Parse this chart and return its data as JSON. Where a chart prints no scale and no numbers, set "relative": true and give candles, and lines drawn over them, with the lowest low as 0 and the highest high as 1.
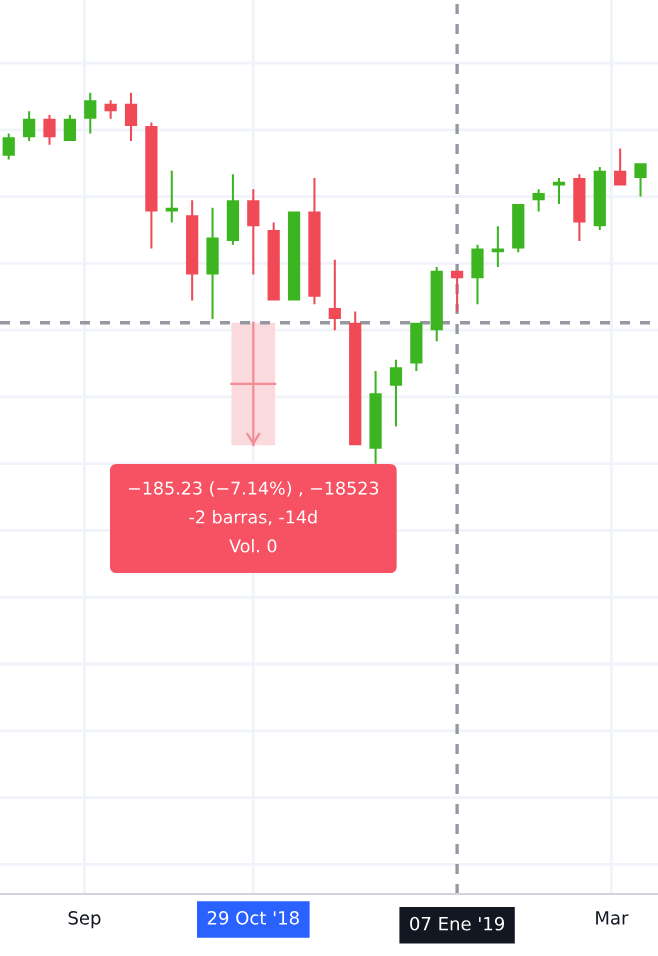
{
  "chart_data": {
    "type": "candlestick",
    "relative": true,
    "x": [
      "2018-08-06",
      "2018-08-13",
      "2018-08-20",
      "2018-08-27",
      "2018-09-03",
      "2018-09-10",
      "2018-09-17",
      "2018-09-24",
      "2018-10-01",
      "2018-10-08",
      "2018-10-15",
      "2018-10-22",
      "2018-10-29",
      "2018-11-05",
      "2018-11-12",
      "2018-11-19",
      "2018-11-26",
      "2018-12-03",
      "2018-12-10",
      "2018-12-17",
      "2018-12-24",
      "2018-12-31",
      "2019-01-07",
      "2019-01-14",
      "2019-01-21",
      "2019-01-28",
      "2019-02-04",
      "2019-02-11",
      "2019-02-18",
      "2019-02-25",
      "2019-03-04",
      "2019-03-11"
    ],
    "ohlc": [
      [
        0.83,
        0.89,
        0.82,
        0.88
      ],
      [
        0.88,
        0.95,
        0.87,
        0.93
      ],
      [
        0.93,
        0.94,
        0.86,
        0.88
      ],
      [
        0.87,
        0.94,
        0.87,
        0.93
      ],
      [
        0.93,
        1.0,
        0.89,
        0.98
      ],
      [
        0.97,
        0.98,
        0.93,
        0.95
      ],
      [
        0.97,
        1.0,
        0.87,
        0.91
      ],
      [
        0.91,
        0.92,
        0.58,
        0.68
      ],
      [
        0.68,
        0.79,
        0.65,
        0.69
      ],
      [
        0.67,
        0.71,
        0.44,
        0.51
      ],
      [
        0.51,
        0.69,
        0.39,
        0.61
      ],
      [
        0.6,
        0.78,
        0.59,
        0.71
      ],
      [
        0.71,
        0.74,
        0.51,
        0.64
      ],
      [
        0.63,
        0.65,
        0.44,
        0.44
      ],
      [
        0.44,
        0.68,
        0.44,
        0.68
      ],
      [
        0.68,
        0.77,
        0.43,
        0.45
      ],
      [
        0.42,
        0.55,
        0.36,
        0.39
      ],
      [
        0.38,
        0.41,
        0.05,
        0.05
      ],
      [
        0.04,
        0.25,
        0.0,
        0.19
      ],
      [
        0.21,
        0.28,
        0.1,
        0.26
      ],
      [
        0.27,
        0.38,
        0.25,
        0.38
      ],
      [
        0.36,
        0.53,
        0.33,
        0.52
      ],
      [
        0.52,
        0.52,
        0.41,
        0.5
      ],
      [
        0.5,
        0.59,
        0.43,
        0.58
      ],
      [
        0.57,
        0.64,
        0.53,
        0.58
      ],
      [
        0.58,
        0.7,
        0.57,
        0.7
      ],
      [
        0.71,
        0.74,
        0.68,
        0.73
      ],
      [
        0.75,
        0.77,
        0.7,
        0.76
      ],
      [
        0.77,
        0.78,
        0.6,
        0.65
      ],
      [
        0.64,
        0.8,
        0.63,
        0.79
      ],
      [
        0.79,
        0.85,
        0.75,
        0.75
      ],
      [
        0.77,
        0.81,
        0.72,
        0.81
      ]
    ],
    "colors": [
      "#3cb521",
      "#3cb521",
      "#ef4a56",
      "#3cb521",
      "#3cb521",
      "#ef4a56",
      "#ef4a56",
      "#ef4a56",
      "#3cb521",
      "#ef4a56",
      "#3cb521",
      "#3cb521",
      "#ef4a56",
      "#ef4a56",
      "#3cb521",
      "#ef4a56",
      "#ef4a56",
      "#ef4a56",
      "#3cb521",
      "#3cb521",
      "#3cb521",
      "#3cb521",
      "#ef4a56",
      "#3cb521",
      "#3cb521",
      "#3cb521",
      "#3cb521",
      "#3cb521",
      "#ef4a56",
      "#3cb521",
      "#ef4a56",
      "#3cb521"
    ],
    "xlim": [
      "2018-08-03",
      "2019-03-17"
    ],
    "xticks": [
      {
        "value": "2018-09-01",
        "label": "Sep"
      },
      {
        "value": "2018-10-29",
        "label": "29 Oct '18"
      },
      {
        "value": "2019-03-01",
        "label": "Mar"
      }
    ],
    "grid": true,
    "ref_lines": [
      {
        "axis": "x",
        "value": "2019-01-07",
        "label": "07 Ene '19",
        "color": "#9598a1",
        "line_style": "dashed"
      },
      {
        "axis": "y",
        "value": 0.38,
        "label": null,
        "color": "#9598a1",
        "line_style": "dashed"
      }
    ],
    "annotations": [
      "−185.23 (−7.14%) , −18523\n-2 barras, -14d\nVol. 0"
    ]
  }
}
